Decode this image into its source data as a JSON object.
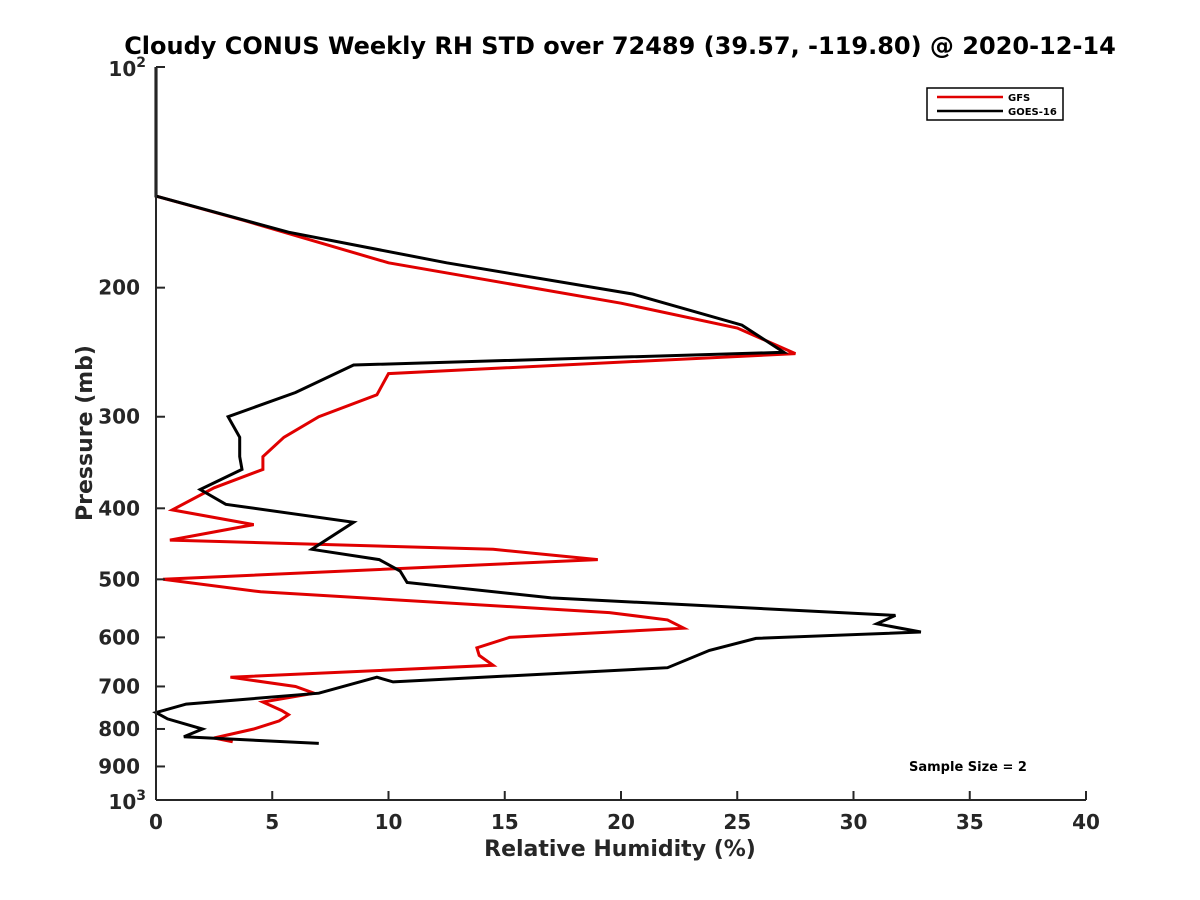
{
  "chart_data": {
    "type": "line",
    "title": "Cloudy CONUS Weekly RH STD over 72489 (39.57, -119.80) @ 2020-12-14",
    "xlabel": "Relative Humidity (%)",
    "ylabel": "Pressure (mb)",
    "xlim": [
      0,
      40
    ],
    "ylim": [
      100,
      1000
    ],
    "yscale": "log",
    "y_reversed": true,
    "grid": false,
    "legend_position": "top-right",
    "x_ticks": [
      "0",
      "5",
      "10",
      "15",
      "20",
      "25",
      "30",
      "35",
      "40"
    ],
    "x_tick_values": [
      0,
      5,
      10,
      15,
      20,
      25,
      30,
      35,
      40
    ],
    "y_ticks": [
      {
        "value": 100,
        "base": "10",
        "exp": "2"
      },
      {
        "value": 200,
        "label": "200"
      },
      {
        "value": 300,
        "label": "300"
      },
      {
        "value": 400,
        "label": "400"
      },
      {
        "value": 500,
        "label": "500"
      },
      {
        "value": 600,
        "label": "600"
      },
      {
        "value": 700,
        "label": "700"
      },
      {
        "value": 800,
        "label": "800"
      },
      {
        "value": 900,
        "label": "900"
      },
      {
        "value": 1000,
        "base": "10",
        "exp": "3"
      }
    ],
    "annotation": "Sample Size = 2",
    "series": [
      {
        "name": "GFS",
        "color": "#e00000",
        "points": [
          [
            0,
            100
          ],
          [
            0,
            150
          ],
          [
            3.8,
            162
          ],
          [
            10,
            185
          ],
          [
            20,
            210
          ],
          [
            25,
            227
          ],
          [
            27.5,
            246
          ],
          [
            10,
            262
          ],
          [
            9.5,
            280
          ],
          [
            7,
            300
          ],
          [
            5.5,
            320
          ],
          [
            4.6,
            340
          ],
          [
            4.6,
            354
          ],
          [
            2.5,
            375
          ],
          [
            0.7,
            402
          ],
          [
            4.2,
            421
          ],
          [
            0.6,
            442
          ],
          [
            14.5,
            455
          ],
          [
            19,
            470
          ],
          [
            0.3,
            500
          ],
          [
            4.5,
            520
          ],
          [
            19.5,
            555
          ],
          [
            22,
            568
          ],
          [
            22.7,
            583
          ],
          [
            15.2,
            600
          ],
          [
            13.8,
            620
          ],
          [
            13.9,
            635
          ],
          [
            14.5,
            655
          ],
          [
            3.2,
            680
          ],
          [
            6,
            700
          ],
          [
            6.8,
            715
          ],
          [
            4.6,
            735
          ],
          [
            5.4,
            755
          ],
          [
            5.7,
            765
          ],
          [
            5.3,
            780
          ],
          [
            4.2,
            800
          ],
          [
            2.5,
            823
          ],
          [
            3.3,
            833
          ]
        ]
      },
      {
        "name": "GOES-16",
        "color": "#000000",
        "points": [
          [
            0,
            100
          ],
          [
            0,
            150
          ],
          [
            5.7,
            168
          ],
          [
            12.5,
            185
          ],
          [
            20.5,
            204
          ],
          [
            25.2,
            225
          ],
          [
            27,
            245
          ],
          [
            8.5,
            255
          ],
          [
            6,
            278
          ],
          [
            3.1,
            300
          ],
          [
            3.6,
            320
          ],
          [
            3.6,
            340
          ],
          [
            3.7,
            354
          ],
          [
            1.9,
            377
          ],
          [
            3,
            395
          ],
          [
            8.5,
            418
          ],
          [
            6.7,
            455
          ],
          [
            9.6,
            470
          ],
          [
            10.5,
            487
          ],
          [
            10.8,
            505
          ],
          [
            17,
            530
          ],
          [
            31.8,
            560
          ],
          [
            31,
            575
          ],
          [
            32.9,
            590
          ],
          [
            25.8,
            602
          ],
          [
            23.8,
            625
          ],
          [
            22,
            660
          ],
          [
            10.2,
            690
          ],
          [
            9.5,
            680
          ],
          [
            7,
            715
          ],
          [
            1.3,
            740
          ],
          [
            0,
            760
          ],
          [
            0.5,
            775
          ],
          [
            2,
            800
          ],
          [
            1.2,
            820
          ],
          [
            7,
            837
          ]
        ]
      }
    ]
  }
}
